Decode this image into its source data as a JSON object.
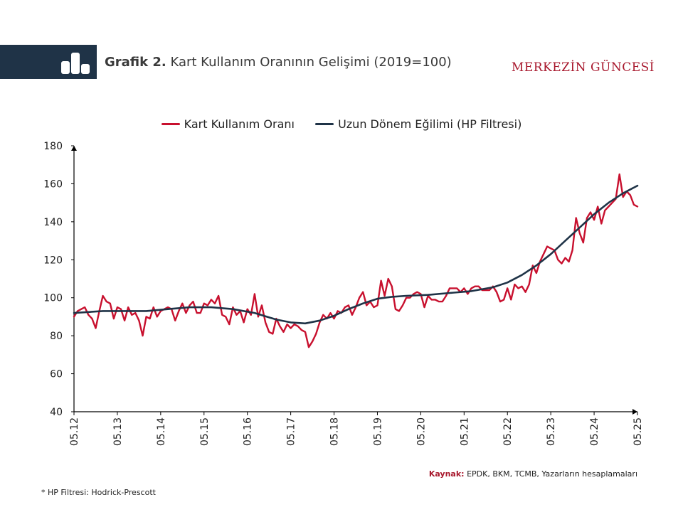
{
  "header": {
    "title_prefix": "Grafik 2.",
    "title_text": "Kart Kullanım Oranının Gelişimi (2019=100)",
    "brand": "MERKEZİN GÜNCESİ",
    "icon": "bar-chart-icon"
  },
  "colors": {
    "header_band": "#1f3347",
    "brand": "#a8182d",
    "series_card": "#c8102e",
    "series_hp": "#1f3347"
  },
  "legend": {
    "series1": "Kart Kullanım Oranı",
    "series2": "Uzun Dönem Eğilimi (HP Filtresi)"
  },
  "source": {
    "label": "Kaynak:",
    "text": "EPDK, BKM, TCMB, Yazarların hesaplamaları"
  },
  "footnote": "* HP Filtresi: Hodrick-Prescott",
  "chart_data": {
    "type": "line",
    "title": "Kart Kullanım Oranının Gelişimi (2019=100)",
    "xlabel": "",
    "ylabel": "",
    "xlim": [
      2012.333,
      2025.333
    ],
    "ylim": [
      40,
      180
    ],
    "yticks": [
      40,
      60,
      80,
      100,
      120,
      140,
      160,
      180
    ],
    "xticks": [
      {
        "label": "05.12",
        "x": 2012.333
      },
      {
        "label": "05.13",
        "x": 2013.333
      },
      {
        "label": "05.14",
        "x": 2014.333
      },
      {
        "label": "05.15",
        "x": 2015.333
      },
      {
        "label": "05.16",
        "x": 2016.333
      },
      {
        "label": "05.17",
        "x": 2017.333
      },
      {
        "label": "05.18",
        "x": 2018.333
      },
      {
        "label": "05.19",
        "x": 2019.333
      },
      {
        "label": "05.20",
        "x": 2020.333
      },
      {
        "label": "05.21",
        "x": 2021.333
      },
      {
        "label": "05.22",
        "x": 2022.333
      },
      {
        "label": "05.23",
        "x": 2023.333
      },
      {
        "label": "05.24",
        "x": 2024.333
      },
      {
        "label": "05.25",
        "x": 2025.333
      }
    ],
    "grid": false,
    "legend_position": "top-center",
    "series": [
      {
        "name": "Kart Kullanım Oranı",
        "color": "#c8102e",
        "points": [
          [
            2012.333,
            90
          ],
          [
            2012.417,
            93
          ],
          [
            2012.5,
            94
          ],
          [
            2012.583,
            95
          ],
          [
            2012.667,
            91
          ],
          [
            2012.75,
            89
          ],
          [
            2012.833,
            84
          ],
          [
            2012.917,
            93
          ],
          [
            2013.0,
            101
          ],
          [
            2013.083,
            98
          ],
          [
            2013.167,
            97
          ],
          [
            2013.25,
            89
          ],
          [
            2013.333,
            95
          ],
          [
            2013.417,
            94
          ],
          [
            2013.5,
            88
          ],
          [
            2013.583,
            95
          ],
          [
            2013.667,
            91
          ],
          [
            2013.75,
            92
          ],
          [
            2013.833,
            88
          ],
          [
            2013.917,
            80
          ],
          [
            2014.0,
            90
          ],
          [
            2014.083,
            89
          ],
          [
            2014.167,
            95
          ],
          [
            2014.25,
            90
          ],
          [
            2014.333,
            93
          ],
          [
            2014.417,
            94
          ],
          [
            2014.5,
            95
          ],
          [
            2014.583,
            94
          ],
          [
            2014.667,
            88
          ],
          [
            2014.75,
            93
          ],
          [
            2014.833,
            97
          ],
          [
            2014.917,
            92
          ],
          [
            2015.0,
            96
          ],
          [
            2015.083,
            98
          ],
          [
            2015.167,
            92
          ],
          [
            2015.25,
            92
          ],
          [
            2015.333,
            97
          ],
          [
            2015.417,
            96
          ],
          [
            2015.5,
            99
          ],
          [
            2015.583,
            97
          ],
          [
            2015.667,
            101
          ],
          [
            2015.75,
            91
          ],
          [
            2015.833,
            90
          ],
          [
            2015.917,
            86
          ],
          [
            2016.0,
            95
          ],
          [
            2016.083,
            91
          ],
          [
            2016.167,
            93
          ],
          [
            2016.25,
            87
          ],
          [
            2016.333,
            94
          ],
          [
            2016.417,
            91
          ],
          [
            2016.5,
            102
          ],
          [
            2016.583,
            90
          ],
          [
            2016.667,
            96
          ],
          [
            2016.75,
            87
          ],
          [
            2016.833,
            82
          ],
          [
            2016.917,
            81
          ],
          [
            2017.0,
            89
          ],
          [
            2017.083,
            85
          ],
          [
            2017.167,
            82
          ],
          [
            2017.25,
            86
          ],
          [
            2017.333,
            84
          ],
          [
            2017.417,
            86
          ],
          [
            2017.5,
            85
          ],
          [
            2017.583,
            83
          ],
          [
            2017.667,
            82
          ],
          [
            2017.75,
            74
          ],
          [
            2017.833,
            77
          ],
          [
            2017.917,
            81
          ],
          [
            2018.0,
            87
          ],
          [
            2018.083,
            91
          ],
          [
            2018.167,
            89
          ],
          [
            2018.25,
            92
          ],
          [
            2018.333,
            89
          ],
          [
            2018.417,
            93
          ],
          [
            2018.5,
            92
          ],
          [
            2018.583,
            95
          ],
          [
            2018.667,
            96
          ],
          [
            2018.75,
            91
          ],
          [
            2018.833,
            95
          ],
          [
            2018.917,
            100
          ],
          [
            2019.0,
            103
          ],
          [
            2019.083,
            96
          ],
          [
            2019.167,
            98
          ],
          [
            2019.25,
            95
          ],
          [
            2019.333,
            96
          ],
          [
            2019.417,
            109
          ],
          [
            2019.5,
            101
          ],
          [
            2019.583,
            110
          ],
          [
            2019.667,
            106
          ],
          [
            2019.75,
            94
          ],
          [
            2019.833,
            93
          ],
          [
            2019.917,
            96
          ],
          [
            2020.0,
            100
          ],
          [
            2020.083,
            100
          ],
          [
            2020.167,
            102
          ],
          [
            2020.25,
            103
          ],
          [
            2020.333,
            102
          ],
          [
            2020.417,
            95
          ],
          [
            2020.5,
            101
          ],
          [
            2020.583,
            99
          ],
          [
            2020.667,
            99
          ],
          [
            2020.75,
            98
          ],
          [
            2020.833,
            98
          ],
          [
            2020.917,
            101
          ],
          [
            2021.0,
            105
          ],
          [
            2021.083,
            105
          ],
          [
            2021.167,
            105
          ],
          [
            2021.25,
            103
          ],
          [
            2021.333,
            105
          ],
          [
            2021.417,
            102
          ],
          [
            2021.5,
            105
          ],
          [
            2021.583,
            106
          ],
          [
            2021.667,
            106
          ],
          [
            2021.75,
            104
          ],
          [
            2021.833,
            104
          ],
          [
            2021.917,
            104
          ],
          [
            2022.0,
            106
          ],
          [
            2022.083,
            103
          ],
          [
            2022.167,
            98
          ],
          [
            2022.25,
            99
          ],
          [
            2022.333,
            105
          ],
          [
            2022.417,
            99
          ],
          [
            2022.5,
            107
          ],
          [
            2022.583,
            105
          ],
          [
            2022.667,
            106
          ],
          [
            2022.75,
            103
          ],
          [
            2022.833,
            107
          ],
          [
            2022.917,
            117
          ],
          [
            2023.0,
            113
          ],
          [
            2023.083,
            119
          ],
          [
            2023.167,
            123
          ],
          [
            2023.25,
            127
          ],
          [
            2023.333,
            126
          ],
          [
            2023.417,
            125
          ],
          [
            2023.5,
            120
          ],
          [
            2023.583,
            118
          ],
          [
            2023.667,
            121
          ],
          [
            2023.75,
            119
          ],
          [
            2023.833,
            125
          ],
          [
            2023.917,
            142
          ],
          [
            2024.0,
            134
          ],
          [
            2024.083,
            129
          ],
          [
            2024.167,
            142
          ],
          [
            2024.25,
            145
          ],
          [
            2024.333,
            141
          ],
          [
            2024.417,
            148
          ],
          [
            2024.5,
            139
          ],
          [
            2024.583,
            146
          ],
          [
            2024.667,
            148
          ],
          [
            2024.75,
            150
          ],
          [
            2024.833,
            152
          ],
          [
            2024.917,
            165
          ],
          [
            2025.0,
            153
          ],
          [
            2025.083,
            156
          ],
          [
            2025.167,
            154
          ],
          [
            2025.25,
            149
          ],
          [
            2025.333,
            148
          ]
        ]
      },
      {
        "name": "Uzun Dönem Eğilimi (HP Filtresi)",
        "color": "#1f3347",
        "points": [
          [
            2012.333,
            92
          ],
          [
            2012.667,
            92.5
          ],
          [
            2013.0,
            93
          ],
          [
            2013.5,
            93
          ],
          [
            2014.0,
            93
          ],
          [
            2014.5,
            94
          ],
          [
            2015.0,
            95
          ],
          [
            2015.5,
            95
          ],
          [
            2016.0,
            94
          ],
          [
            2016.5,
            92
          ],
          [
            2017.0,
            88.5
          ],
          [
            2017.333,
            87
          ],
          [
            2017.667,
            86.5
          ],
          [
            2018.0,
            88
          ],
          [
            2018.333,
            90.5
          ],
          [
            2018.667,
            94
          ],
          [
            2019.0,
            97
          ],
          [
            2019.333,
            99.5
          ],
          [
            2019.667,
            100.5
          ],
          [
            2020.0,
            101
          ],
          [
            2020.5,
            101.5
          ],
          [
            2021.0,
            102.5
          ],
          [
            2021.5,
            103.5
          ],
          [
            2022.0,
            105.5
          ],
          [
            2022.333,
            108
          ],
          [
            2022.667,
            112
          ],
          [
            2023.0,
            117
          ],
          [
            2023.333,
            123
          ],
          [
            2023.667,
            130
          ],
          [
            2024.0,
            137
          ],
          [
            2024.333,
            144
          ],
          [
            2024.667,
            150
          ],
          [
            2025.0,
            155
          ],
          [
            2025.333,
            159
          ]
        ]
      }
    ]
  }
}
